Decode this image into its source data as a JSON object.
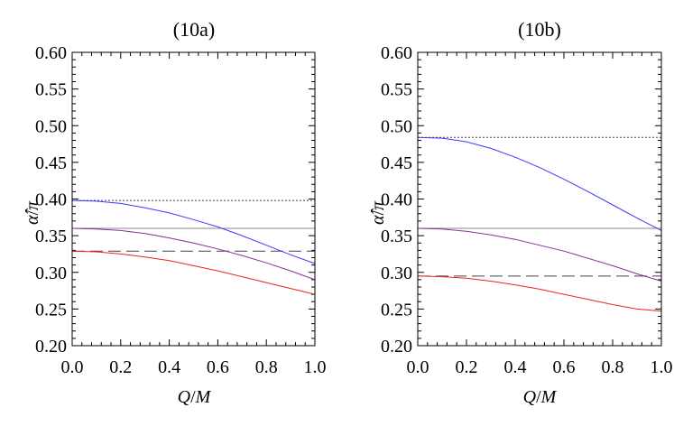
{
  "chart_data": [
    {
      "type": "line",
      "title": "(10a)",
      "xlabel_left": "Q",
      "xlabel_sep": "/",
      "xlabel_right": "M",
      "ylabel_top": "α̂",
      "ylabel_sep": "/",
      "ylabel_right": "π",
      "xlim": [
        0,
        1
      ],
      "ylim": [
        0.2,
        0.6
      ],
      "xticks": [
        "0.0",
        "0.2",
        "0.4",
        "0.6",
        "0.8",
        "1.0"
      ],
      "yticks": [
        "0.20",
        "0.25",
        "0.30",
        "0.35",
        "0.40",
        "0.45",
        "0.50",
        "0.55",
        "0.60"
      ],
      "hlines": [
        {
          "name": "dotted-reference",
          "y": 0.398,
          "style": "dotted",
          "color": "#444444"
        },
        {
          "name": "solid-reference",
          "y": 0.36,
          "style": "solid",
          "color": "#888888"
        },
        {
          "name": "dashed-reference",
          "y": 0.329,
          "style": "dashed",
          "color": "#444444"
        }
      ],
      "series": [
        {
          "name": "blue-curve",
          "color": "#3b3bff",
          "x": [
            0,
            0.1,
            0.2,
            0.3,
            0.4,
            0.5,
            0.6,
            0.7,
            0.8,
            0.9,
            1.0
          ],
          "y": [
            0.398,
            0.397,
            0.394,
            0.388,
            0.381,
            0.372,
            0.362,
            0.35,
            0.337,
            0.324,
            0.312
          ]
        },
        {
          "name": "purple-curve",
          "color": "#8e2a9e",
          "x": [
            0,
            0.1,
            0.2,
            0.3,
            0.4,
            0.5,
            0.6,
            0.7,
            0.8,
            0.9,
            1.0
          ],
          "y": [
            0.36,
            0.359,
            0.357,
            0.353,
            0.347,
            0.34,
            0.332,
            0.323,
            0.313,
            0.302,
            0.29
          ]
        },
        {
          "name": "red-curve",
          "color": "#ee2222",
          "x": [
            0,
            0.1,
            0.2,
            0.3,
            0.4,
            0.5,
            0.6,
            0.7,
            0.8,
            0.9,
            1.0
          ],
          "y": [
            0.329,
            0.328,
            0.325,
            0.321,
            0.316,
            0.309,
            0.302,
            0.294,
            0.286,
            0.278,
            0.27
          ]
        }
      ]
    },
    {
      "type": "line",
      "title": "(10b)",
      "xlabel_left": "Q",
      "xlabel_sep": "/",
      "xlabel_right": "M",
      "ylabel_top": "α̂",
      "ylabel_sep": "/",
      "ylabel_right": "π",
      "xlim": [
        0,
        1
      ],
      "ylim": [
        0.2,
        0.6
      ],
      "xticks": [
        "0.0",
        "0.2",
        "0.4",
        "0.6",
        "0.8",
        "1.0"
      ],
      "yticks": [
        "0.20",
        "0.25",
        "0.30",
        "0.35",
        "0.40",
        "0.45",
        "0.50",
        "0.55",
        "0.60"
      ],
      "hlines": [
        {
          "name": "dotted-reference",
          "y": 0.484,
          "style": "dotted",
          "color": "#444444"
        },
        {
          "name": "solid-reference",
          "y": 0.36,
          "style": "solid",
          "color": "#888888"
        },
        {
          "name": "dashed-reference",
          "y": 0.295,
          "style": "dashed",
          "color": "#444444"
        }
      ],
      "series": [
        {
          "name": "blue-curve",
          "color": "#3b3bff",
          "x": [
            0,
            0.1,
            0.2,
            0.3,
            0.4,
            0.5,
            0.6,
            0.7,
            0.8,
            0.9,
            1.0
          ],
          "y": [
            0.484,
            0.483,
            0.478,
            0.469,
            0.457,
            0.443,
            0.427,
            0.41,
            0.392,
            0.374,
            0.357
          ]
        },
        {
          "name": "purple-curve",
          "color": "#8e2a9e",
          "x": [
            0,
            0.1,
            0.2,
            0.3,
            0.4,
            0.5,
            0.6,
            0.7,
            0.8,
            0.9,
            1.0
          ],
          "y": [
            0.36,
            0.359,
            0.356,
            0.351,
            0.345,
            0.337,
            0.329,
            0.319,
            0.309,
            0.298,
            0.288
          ]
        },
        {
          "name": "red-curve",
          "color": "#ee2222",
          "x": [
            0,
            0.1,
            0.2,
            0.3,
            0.4,
            0.5,
            0.6,
            0.7,
            0.8,
            0.9,
            1.0
          ],
          "y": [
            0.295,
            0.294,
            0.292,
            0.288,
            0.283,
            0.277,
            0.27,
            0.263,
            0.256,
            0.25,
            0.247
          ]
        }
      ]
    }
  ]
}
